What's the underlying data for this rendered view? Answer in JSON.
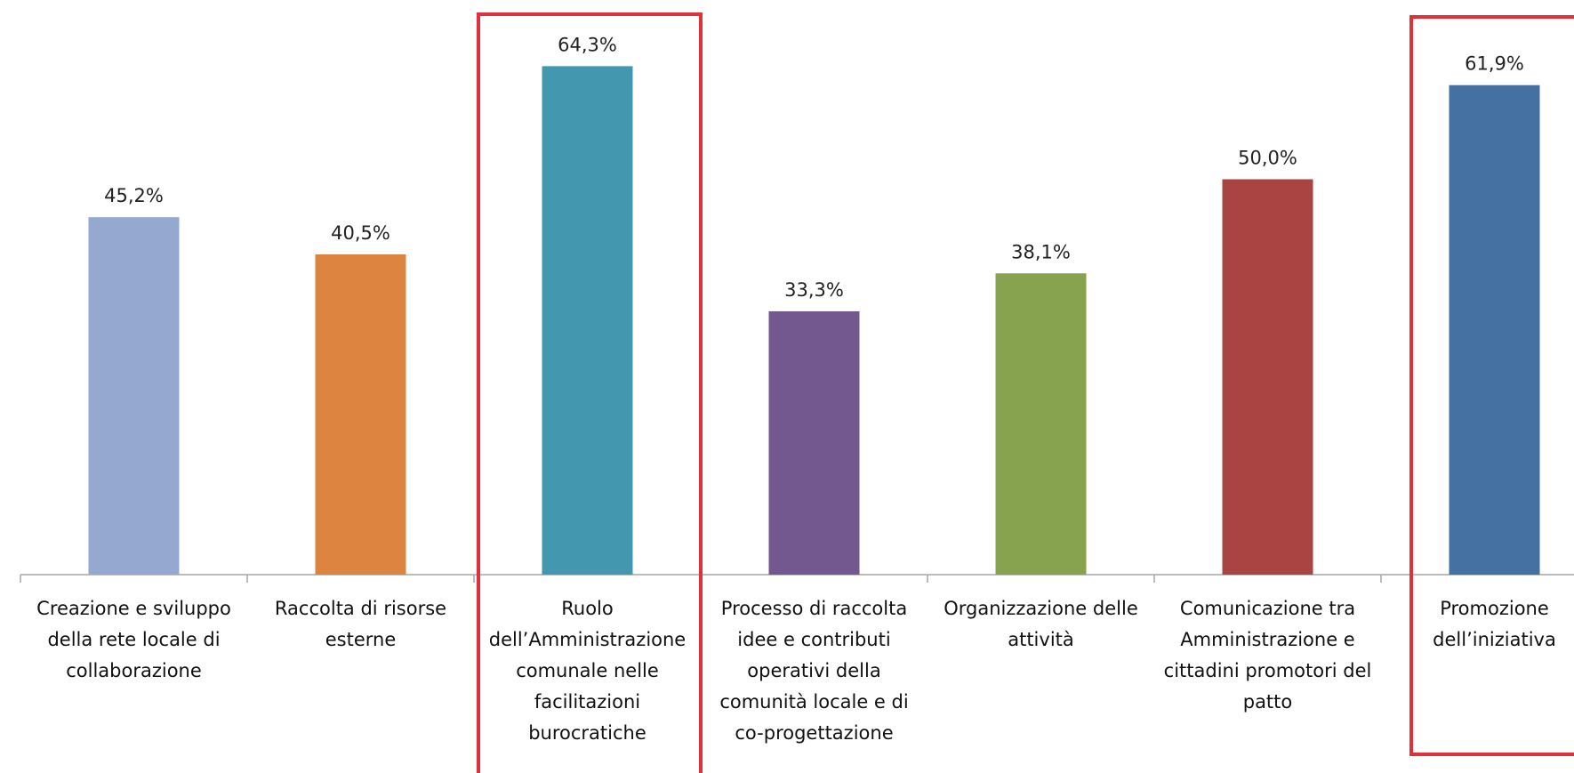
{
  "chart_data": {
    "type": "bar",
    "categories": [
      "Creazione e sviluppo della rete locale di collaborazione",
      "Raccolta di risorse esterne",
      "Ruolo dell’Amministrazione comunale nelle facilitazioni burocratiche",
      "Processo di raccolta idee e contributi operativi della comunità locale e di co-progettazione",
      "Organizzazione delle attività",
      "Comunicazione tra Amministrazione e cittadini promotori del patto",
      "Promozione dell’iniziativa"
    ],
    "values": [
      45.2,
      40.5,
      64.3,
      33.3,
      38.1,
      50.0,
      61.9
    ],
    "value_labels": [
      "45,2%",
      "40,5%",
      "64,3%",
      "33,3%",
      "38,1%",
      "50,0%",
      "61,9%"
    ],
    "colors": [
      "#95a9d0",
      "#dc8440",
      "#4398b0",
      "#72588e",
      "#87a34f",
      "#a94442",
      "#4471a1"
    ]
  }
}
